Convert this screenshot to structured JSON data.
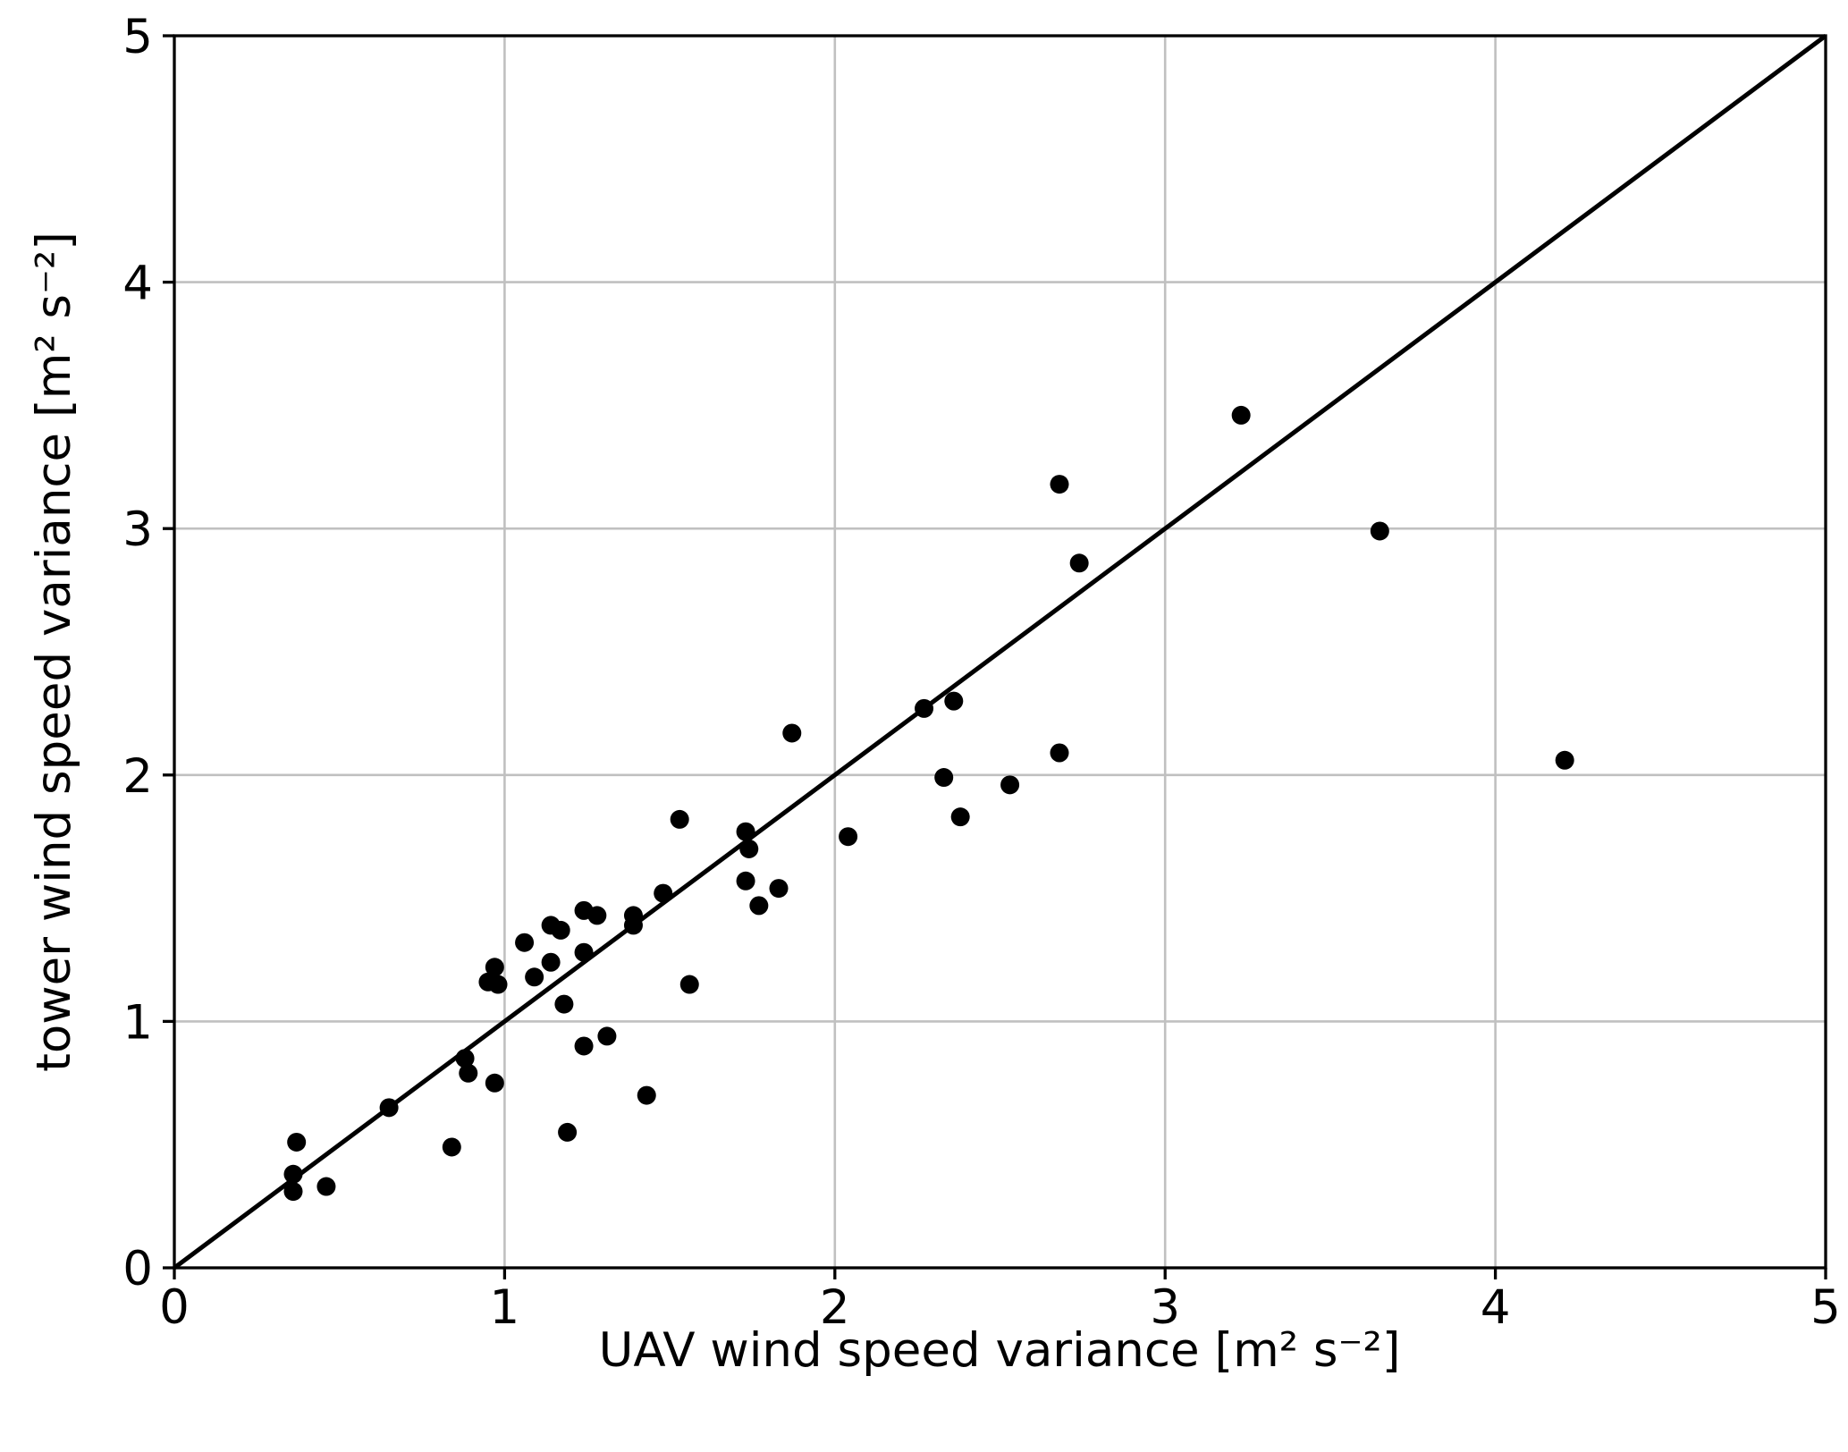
{
  "chart_data": {
    "type": "scatter",
    "title": "",
    "xlabel": "UAV wind speed variance [m² s⁻²]",
    "ylabel": "tower wind speed variance [m² s⁻²]",
    "xlim": [
      0,
      5
    ],
    "ylim": [
      0,
      5
    ],
    "xticks": [
      "0",
      "1",
      "2",
      "3",
      "4",
      "5"
    ],
    "yticks": [
      "0",
      "1",
      "2",
      "3",
      "4",
      "5"
    ],
    "grid": true,
    "reference_line": {
      "name": "1:1 line",
      "x": [
        0,
        5
      ],
      "y": [
        0,
        5
      ],
      "color": "#000000"
    },
    "marker_color": "#000000",
    "points": [
      [
        0.37,
        0.51
      ],
      [
        0.36,
        0.38
      ],
      [
        0.36,
        0.31
      ],
      [
        0.46,
        0.33
      ],
      [
        0.65,
        0.65
      ],
      [
        0.84,
        0.49
      ],
      [
        0.88,
        0.85
      ],
      [
        0.89,
        0.79
      ],
      [
        0.97,
        0.75
      ],
      [
        0.95,
        1.16
      ],
      [
        0.97,
        1.22
      ],
      [
        0.98,
        1.15
      ],
      [
        1.06,
        1.32
      ],
      [
        1.09,
        1.18
      ],
      [
        1.14,
        1.39
      ],
      [
        1.14,
        1.24
      ],
      [
        1.17,
        1.37
      ],
      [
        1.18,
        1.07
      ],
      [
        1.19,
        0.55
      ],
      [
        1.24,
        1.28
      ],
      [
        1.24,
        1.45
      ],
      [
        1.24,
        0.9
      ],
      [
        1.28,
        1.43
      ],
      [
        1.31,
        0.94
      ],
      [
        1.39,
        1.39
      ],
      [
        1.39,
        1.43
      ],
      [
        1.43,
        0.7
      ],
      [
        1.48,
        1.52
      ],
      [
        1.53,
        1.82
      ],
      [
        1.56,
        1.15
      ],
      [
        1.73,
        1.77
      ],
      [
        1.74,
        1.7
      ],
      [
        1.73,
        1.57
      ],
      [
        1.77,
        1.47
      ],
      [
        1.83,
        1.54
      ],
      [
        1.87,
        2.17
      ],
      [
        2.04,
        1.75
      ],
      [
        2.27,
        2.27
      ],
      [
        2.33,
        1.99
      ],
      [
        2.36,
        2.3
      ],
      [
        2.38,
        1.83
      ],
      [
        2.53,
        1.96
      ],
      [
        2.68,
        2.09
      ],
      [
        2.68,
        3.18
      ],
      [
        2.74,
        2.86
      ],
      [
        3.23,
        3.46
      ],
      [
        3.65,
        2.99
      ],
      [
        4.21,
        2.06
      ]
    ]
  }
}
